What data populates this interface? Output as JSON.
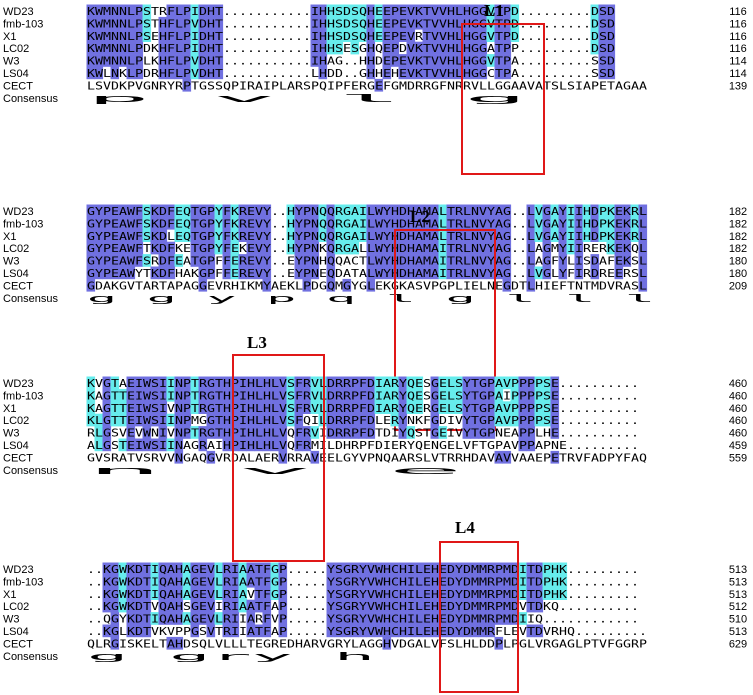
{
  "blocks": [
    {
      "label": "L1",
      "rows": [
        {
          "name": "WD23",
          "seq": "KWMNNLPSTRFLPIDHT...........IHHSDSQHEEPEVKTVVHLHGGVTPD.........DSD",
          "num": "116"
        },
        {
          "name": "fmb-103",
          "seq": "KWMNNLPSTHFLPVDHT...........IHHSDSQHEEPEVKTVVHLHGGVTPD.........DSD",
          "num": "116"
        },
        {
          "name": "X1",
          "seq": "KWMNNLPSEHFLPIDHT...........IHHSDSQHEEPEVRTVVHLHGGVTPD.........DSD",
          "num": "116"
        },
        {
          "name": "LC02",
          "seq": "KWMNNLPDKHFLPIDHT...........IHHSESGHQEPDVKTVVHLHGGATPP.........DSD",
          "num": "116"
        },
        {
          "name": "W3",
          "seq": "KWMNNLPLKHFLPVDHT...........IHAG..HHDEPEVKTVVHLHGGVTPA.........SSD",
          "num": "114"
        },
        {
          "name": "LS04",
          "seq": "KWLNKLPDRHFLPVDHT...........LHDD..GHHEHEVKTVVHLHGGCTPA.........SSD",
          "num": "114"
        },
        {
          "name": "CECT",
          "seq": "LSVDKPVGNRYRPTGSSQPIRAIPLARSPQIPFERGEFGMDRRGFNRRVLLGGAAVATSLSIAPETAGAA",
          "num": "139"
        },
        {
          "name": "Consensus",
          "seq": "            p                                     v l g",
          "num": ""
        }
      ]
    },
    {
      "label": "L2",
      "rows": [
        {
          "name": "WD23",
          "seq": "GYPEAWFSKDFEQTGPYFKREVY..HYPNQQRGAILWYHDHAMALTRLNVYAG..LVGAYIIHDPKEKRL",
          "num": "182"
        },
        {
          "name": "fmb-103",
          "seq": "GYPEAWFSKDFEQTGPYFKREVY..HYPNQQRGAILWYHDHAMALTRLNVYAG..LVGAYIIHDPKEKRL",
          "num": "182"
        },
        {
          "name": "X1",
          "seq": "GYPEAWFSKDLEQTGPYFKREVY..HYPNQQRGAILWYHDHAMALTRLNVYAG..LVGAYIIHDPKEKRL",
          "num": "182"
        },
        {
          "name": "LC02",
          "seq": "GYPEAWFTKDFKETGPYFEKEVY..HYPNKQRGALLWYHDHAMAITRLNVYAG..LAGMYIIRERKEKQL",
          "num": "182"
        },
        {
          "name": "W3",
          "seq": "GYPEAWFSRDFEATGPFFEREVY..EYPNHQQACTLWYHDHAMAITRLNVYAG..LAGFYLISDAFEKSL",
          "num": "180"
        },
        {
          "name": "LS04",
          "seq": "GYPEAWYTKDFHAKGPFFEREVY..EYPNEQDATALWYHDHAMAITRLNVYAG..LVGLYFIRDREERSL",
          "num": "180"
        },
        {
          "name": "CECT",
          "seq": "GDAKGVTARTAPAGGEVRHIKMYAEKLPDGQMGYGLEKGKASVPGPLIELNEGDTLHIEFTNTMDVRASL",
          "num": "209"
        },
        {
          "name": "Consensus",
          "seq": "g           g     y    p  q      l           g l             l        l",
          "num": ""
        }
      ]
    },
    {
      "label": "L3",
      "rows": [
        {
          "name": "WD23",
          "seq": "KVGTAEIWSIINPTRGTHPIHLHLVSFRVLDRRPFDIARYQESGELSYTGPAVPPPPSE..........",
          "num": "460"
        },
        {
          "name": "fmb-103",
          "seq": "KAGTTEIWSIINPTRGTHPIHLHLVSFRVLDRRPFDIARYQESGELSYTGPAIPPPPSE..........",
          "num": "460"
        },
        {
          "name": "X1",
          "seq": "KAGTTEIWSIVNPTRGTHPIHLHLVSFRVLDRRPFDIARYQERGELSYTGPAVPPPPSE..........",
          "num": "460"
        },
        {
          "name": "LC02",
          "seq": "KLGTTEIWSIINPMGGTHPIHLHLVSFQILDRRPFDLERYNKFGDIVYTGPAVPPPPSE..........",
          "num": "460"
        },
        {
          "name": "W3",
          "seq": "RLGSVEVWNIVNPTRGTHPIHLHLVQFRVIDRRPFDTDIYQSTGEIVYTGPNEAPPLHE..........",
          "num": "460"
        },
        {
          "name": "LS04",
          "seq": "ALGSTEIWSIINAGRAIHPIHLHLVQFRMILDHRPFDIERYQENGELVFTGPAVPPAPNE.........",
          "num": "459"
        },
        {
          "name": "CECT",
          "seq": "GVSRATVSRVVNGAQGVRDALAERVRRAVEELGYVPNQAARSLVTRRHDAVAVVAAEPETRVFADPYFAQ",
          "num": "559"
        },
        {
          "name": "Consensus",
          "seq": "           n             v                    e",
          "num": ""
        }
      ]
    },
    {
      "label": "L4",
      "rows": [
        {
          "name": "WD23",
          "seq": "..KGWKDTIQAHAGEVLRIAATFGP.....YSGRYVWHCHILEHEDYDMMRPMDITDPHK.........",
          "num": "513"
        },
        {
          "name": "fmb-103",
          "seq": "..KGWKDTIQAHAGEVLRIAATFGP.....YSGRYVWHCHILEHEDYDMMRPMDITDPHK.........",
          "num": "513"
        },
        {
          "name": "X1",
          "seq": "..KGWKDTIQAHAGEVLRIAVTFGP.....YSGRYVWHCHILEHEDYDMMRPMDITDPHK.........",
          "num": "513"
        },
        {
          "name": "LC02",
          "seq": "..KGWKDTVQAHSGEVIRIAATFAP.....YSGRYVWHCHILEHEDYDMMRPMDVTDKQ..........",
          "num": "512"
        },
        {
          "name": "W3",
          "seq": "..QGYKDTIQAHAGEVLRIIARFVP.....YSGRYVWHCHILEHEDYDMMRPMDIIQ............",
          "num": "510"
        },
        {
          "name": "LS04",
          "seq": "..KGLKDTVKVPPGSVTRIIATFAP.....YSGRYVWHCHILEHEDYDMMRFLEVTDVRHQ.........",
          "num": "513"
        },
        {
          "name": "CECT",
          "seq": "QLRGISKELTAHDSQLVLLLTEGREDHARVGRYLAGGHVDGALVFSLHLDDPLPGLVRGAGLPTVFGGRP",
          "num": "629"
        },
        {
          "name": "Consensus",
          "seq": "    g                        gry   h",
          "num": ""
        }
      ]
    }
  ],
  "colors": {
    "identity": "#7070e0",
    "similar": "#66ecec",
    "box": "#e01818"
  }
}
